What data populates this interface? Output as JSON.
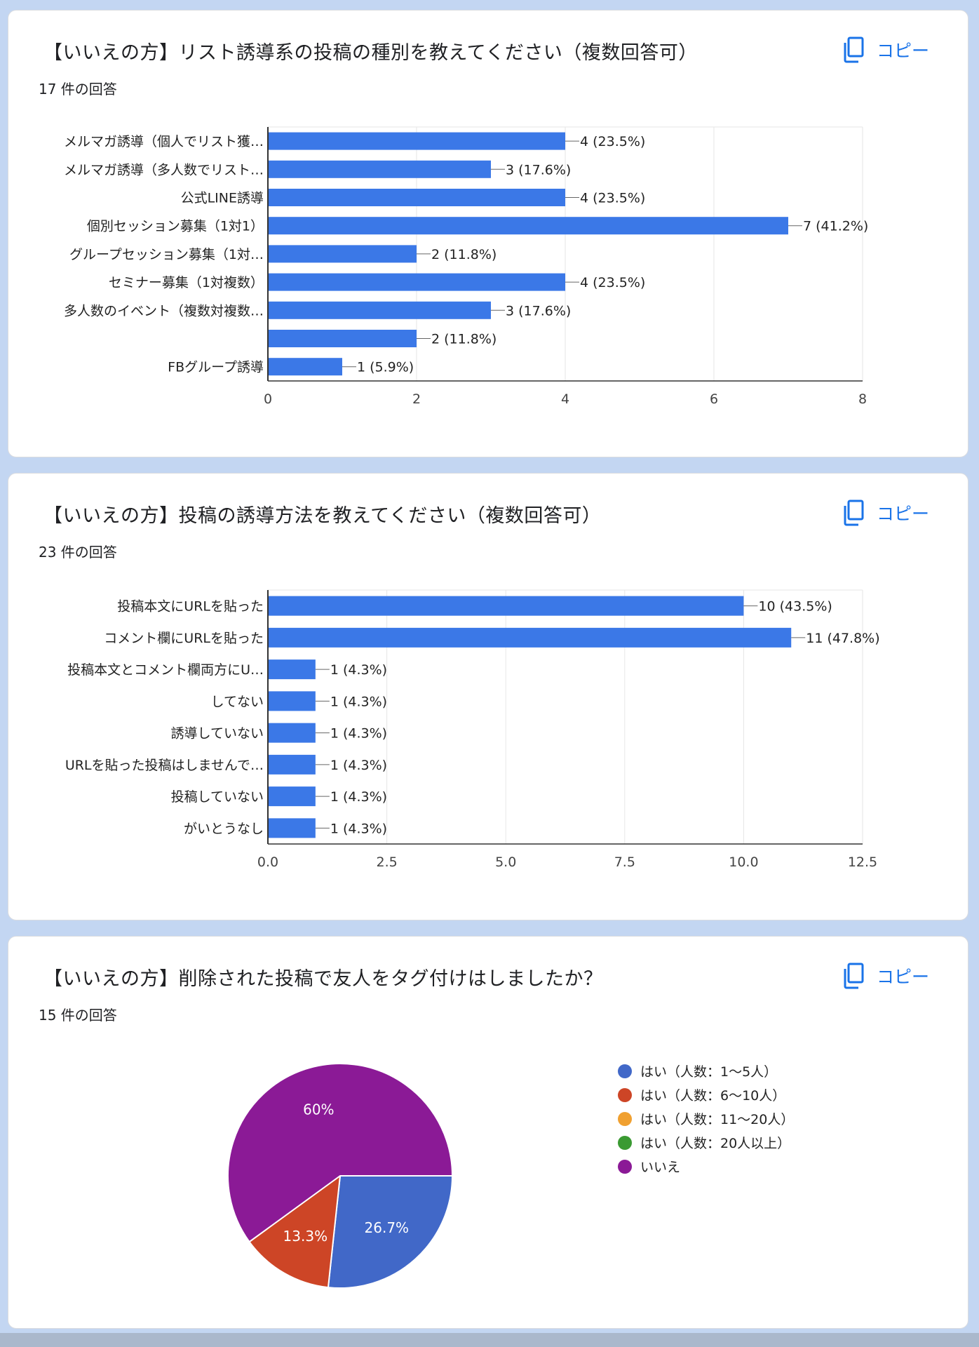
{
  "copy_label": "コピー",
  "colors": {
    "bar": "#3b78e7",
    "grid": "#e6e6e6",
    "axis": "#333333",
    "copy": "#1a73e8"
  },
  "q1": {
    "title": "【いいえの方】リスト誘導系の投稿の種別を教えてください（複数回答可）",
    "count": "17 件の回答",
    "chart_data": {
      "type": "bar",
      "orientation": "horizontal",
      "categories": [
        "メルマガ誘導（個人でリスト獲…",
        "メルマガ誘導（多人数でリスト…",
        "公式LINE誘導",
        "個別セッション募集（1対1）",
        "グループセッション募集（1対…",
        "セミナー募集（1対複数）",
        "多人数のイベント（複数対複数…",
        "",
        "FBグループ誘導"
      ],
      "values": [
        4,
        3,
        4,
        7,
        2,
        4,
        3,
        2,
        1
      ],
      "data_labels": [
        "4 (23.5%)",
        "3 (17.6%)",
        "4 (23.5%)",
        "7 (41.2%)",
        "2 (11.8%)",
        "4 (23.5%)",
        "3 (17.6%)",
        "2 (11.8%)",
        "1 (5.9%)"
      ],
      "xlim": [
        0,
        8
      ],
      "xticks": [
        0,
        2,
        4,
        6,
        8
      ],
      "xtick_labels": [
        "0",
        "2",
        "4",
        "6",
        "8"
      ],
      "grid": true
    }
  },
  "q2": {
    "title": "【いいえの方】投稿の誘導方法を教えてください（複数回答可）",
    "count": "23 件の回答",
    "chart_data": {
      "type": "bar",
      "orientation": "horizontal",
      "categories": [
        "投稿本文にURLを貼った",
        "コメント欄にURLを貼った",
        "投稿本文とコメント欄両方にU…",
        "してない",
        "誘導していない",
        "URLを貼った投稿はしませんで…",
        "投稿していない",
        "がいとうなし"
      ],
      "values": [
        10,
        11,
        1,
        1,
        1,
        1,
        1,
        1
      ],
      "data_labels": [
        "10 (43.5%)",
        "11 (47.8%)",
        "1 (4.3%)",
        "1 (4.3%)",
        "1 (4.3%)",
        "1 (4.3%)",
        "1 (4.3%)",
        "1 (4.3%)"
      ],
      "xlim": [
        0,
        12.5
      ],
      "xticks": [
        0,
        2.5,
        5,
        7.5,
        10,
        12.5
      ],
      "xtick_labels": [
        "0.0",
        "2.5",
        "5.0",
        "7.5",
        "10.0",
        "12.5"
      ],
      "grid": true
    }
  },
  "q3": {
    "title": "【いいえの方】削除された投稿で友人をタグ付けはしましたか？",
    "count": "15 件の回答",
    "chart_data": {
      "type": "pie",
      "labels": [
        "はい（人数：1〜5人）",
        "はい（人数：6〜10人）",
        "はい（人数：11〜20人）",
        "はい（人数：20人以上）",
        "いいえ"
      ],
      "values": [
        26.7,
        13.3,
        0,
        0,
        60
      ],
      "slice_labels": [
        "26.7%",
        "13.3%",
        "",
        "",
        "60%"
      ],
      "colors": [
        "#4168c8",
        "#cd4526",
        "#f0a030",
        "#3a9a32",
        "#8b1a96"
      ],
      "legend_position": "right"
    }
  }
}
